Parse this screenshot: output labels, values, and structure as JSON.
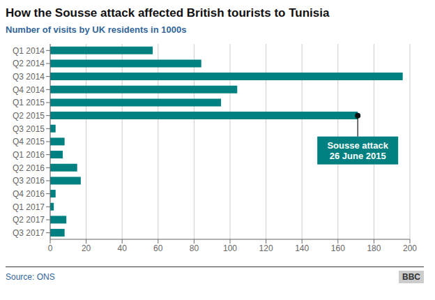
{
  "chart_data": {
    "type": "bar",
    "orientation": "horizontal",
    "title": "How the Sousse attack affected British tourists to Tunisia",
    "subtitle": "Number of visits by UK residents in 1000s",
    "source": "Source: ONS",
    "logo": "BBC",
    "categories": [
      "Q1 2014",
      "Q2 2014",
      "Q3 2014",
      "Q4 2014",
      "Q1 2015",
      "Q2 2015",
      "Q3 2015",
      "Q4 2015",
      "Q1 2016",
      "Q2 2016",
      "Q3 2016",
      "Q4 2016",
      "Q1 2017",
      "Q2 2017",
      "Q3 2017"
    ],
    "values": [
      57,
      84,
      196,
      104,
      95,
      171,
      3,
      8,
      7,
      15,
      17,
      3,
      2,
      9,
      8
    ],
    "color": "#008080",
    "xlim": [
      0,
      200
    ],
    "xticks": [
      0,
      20,
      40,
      60,
      80,
      100,
      120,
      140,
      160,
      180,
      200
    ],
    "grid": true,
    "annotations": [
      {
        "text": "Sousse attack\n26 June 2015",
        "category": "Q2 2015",
        "color": "#008080"
      }
    ]
  }
}
